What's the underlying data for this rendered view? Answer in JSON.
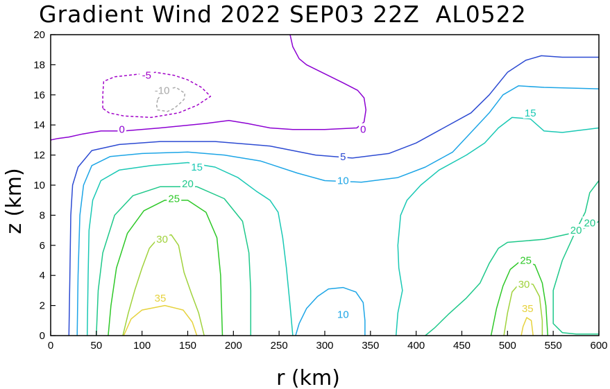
{
  "chart_data": {
    "type": "contour",
    "title": "Gradient Wind 2022 SEP03 22Z  AL0522",
    "xlabel": "r (km)",
    "ylabel": "z (km)",
    "xlim": [
      0,
      600
    ],
    "ylim": [
      0,
      20
    ],
    "x_ticks": [
      0,
      50,
      100,
      150,
      200,
      250,
      300,
      350,
      400,
      450,
      500,
      550,
      600
    ],
    "y_ticks": [
      0,
      2,
      4,
      6,
      8,
      10,
      12,
      14,
      16,
      18,
      20
    ],
    "x_tick_labels": [
      "0",
      "50",
      "100",
      "150",
      "200",
      "250",
      "300",
      "350",
      "400",
      "450",
      "500",
      "550",
      "600"
    ],
    "y_tick_labels": [
      "0",
      "2",
      "4",
      "6",
      "8",
      "10",
      "12",
      "14",
      "16",
      "18",
      "20"
    ],
    "colors": {
      "-10": "#a8a8a8",
      "-5": "#a000c8",
      "0": "#8c00d2",
      "5": "#2c4ad2",
      "10": "#1ca5e6",
      "15": "#19c8b4",
      "20": "#1ec88a",
      "25": "#2ec828",
      "30": "#a0d23c",
      "35": "#e6d23c"
    },
    "contours": [
      {
        "level": -10,
        "dashed": true,
        "label": "-10",
        "label_at": [
          122,
          16.3
        ],
        "points": [
          [
            117,
            15.7
          ],
          [
            122,
            16.1
          ],
          [
            130,
            16.4
          ],
          [
            137,
            16.5
          ],
          [
            142,
            16.3
          ],
          [
            147,
            16.1
          ],
          [
            146,
            15.7
          ],
          [
            141,
            15.4
          ],
          [
            135,
            15.1
          ],
          [
            128,
            14.9
          ],
          [
            117,
            15.0
          ],
          [
            116,
            15.3
          ],
          [
            117,
            15.7
          ]
        ]
      },
      {
        "level": -5,
        "dashed": true,
        "label": "-5",
        "label_at": [
          105,
          17.3
        ],
        "points": [
          [
            57,
            15.1
          ],
          [
            57,
            16.0
          ],
          [
            58,
            16.9
          ],
          [
            70,
            17.2
          ],
          [
            85,
            17.3
          ],
          [
            100,
            17.4
          ],
          [
            115,
            17.5
          ],
          [
            135,
            17.3
          ],
          [
            150,
            17.0
          ],
          [
            165,
            16.5
          ],
          [
            175,
            15.9
          ],
          [
            160,
            15.3
          ],
          [
            140,
            14.8
          ],
          [
            110,
            14.5
          ],
          [
            80,
            14.6
          ],
          [
            64,
            14.8
          ],
          [
            57,
            15.1
          ]
        ]
      },
      {
        "level": 0,
        "label": "0",
        "label_at": [
          78,
          13.7
        ],
        "points": [
          [
            0,
            13.0
          ],
          [
            8,
            13.1
          ],
          [
            20,
            13.2
          ],
          [
            35,
            13.4
          ],
          [
            55,
            13.6
          ],
          [
            80,
            13.6
          ],
          [
            120,
            13.8
          ],
          [
            170,
            14.1
          ],
          [
            195,
            14.3
          ],
          [
            215,
            14.1
          ],
          [
            240,
            13.8
          ],
          [
            265,
            13.7
          ],
          [
            300,
            13.7
          ],
          [
            335,
            13.8
          ],
          [
            343,
            14.2
          ],
          [
            345,
            15.0
          ],
          [
            343,
            15.8
          ],
          [
            336,
            16.3
          ],
          [
            320,
            16.8
          ],
          [
            300,
            17.4
          ],
          [
            280,
            18.0
          ],
          [
            272,
            18.4
          ],
          [
            265,
            19.2
          ],
          [
            262,
            20.0
          ]
        ]
      },
      {
        "level": 0,
        "label": "0",
        "label_at": [
          342,
          13.7
        ],
        "points": []
      },
      {
        "level": 5,
        "label": "5",
        "label_at": [
          320,
          11.9
        ],
        "points": [
          [
            20,
            0.0
          ],
          [
            21,
            4.0
          ],
          [
            22,
            8.0
          ],
          [
            24,
            10.0
          ],
          [
            30,
            11.2
          ],
          [
            45,
            12.3
          ],
          [
            75,
            12.7
          ],
          [
            120,
            12.9
          ],
          [
            180,
            12.9
          ],
          [
            240,
            12.6
          ],
          [
            290,
            12.0
          ],
          [
            330,
            11.8
          ],
          [
            370,
            12.1
          ],
          [
            400,
            12.8
          ],
          [
            430,
            13.8
          ],
          [
            460,
            14.8
          ],
          [
            480,
            16.0
          ],
          [
            500,
            17.5
          ],
          [
            520,
            18.3
          ],
          [
            537,
            18.6
          ],
          [
            560,
            18.5
          ],
          [
            600,
            18.5
          ]
        ]
      },
      {
        "level": 10,
        "label": "10",
        "label_at": [
          320,
          10.3
        ],
        "points": [
          [
            29,
            0.0
          ],
          [
            30,
            4.0
          ],
          [
            32,
            8.0
          ],
          [
            36,
            10.0
          ],
          [
            45,
            11.3
          ],
          [
            65,
            11.9
          ],
          [
            100,
            12.1
          ],
          [
            150,
            12.2
          ],
          [
            190,
            12.0
          ],
          [
            230,
            11.6
          ],
          [
            270,
            10.8
          ],
          [
            300,
            10.3
          ],
          [
            340,
            10.2
          ],
          [
            380,
            10.5
          ],
          [
            410,
            11.2
          ],
          [
            440,
            12.2
          ],
          [
            460,
            13.5
          ],
          [
            480,
            14.8
          ],
          [
            495,
            16.0
          ],
          [
            512,
            16.6
          ],
          [
            540,
            16.5
          ],
          [
            600,
            16.4
          ]
        ]
      },
      {
        "level": 10,
        "label": "10",
        "label_at": [
          320,
          1.4
        ],
        "points": [
          [
            268,
            0.0
          ],
          [
            272,
            0.8
          ],
          [
            280,
            1.8
          ],
          [
            292,
            2.6
          ],
          [
            304,
            3.1
          ],
          [
            320,
            3.2
          ],
          [
            334,
            2.9
          ],
          [
            342,
            2.2
          ],
          [
            344,
            1.0
          ],
          [
            344,
            0.0
          ]
        ]
      },
      {
        "level": 15,
        "label": "15",
        "label_at": [
          160,
          11.2
        ],
        "points": [
          [
            40,
            0.0
          ],
          [
            41,
            4.0
          ],
          [
            42,
            7.0
          ],
          [
            46,
            9.0
          ],
          [
            55,
            10.3
          ],
          [
            75,
            11.0
          ],
          [
            110,
            11.3
          ],
          [
            150,
            11.5
          ],
          [
            180,
            11.2
          ],
          [
            205,
            10.5
          ],
          [
            225,
            9.6
          ],
          [
            240,
            9.0
          ],
          [
            249,
            8.2
          ],
          [
            254,
            6.5
          ],
          [
            258,
            4.5
          ],
          [
            262,
            2.0
          ],
          [
            265,
            0.0
          ]
        ]
      },
      {
        "level": 15,
        "label": "15",
        "label_at": [
          525,
          14.8
        ],
        "points": [
          [
            378,
            0.0
          ],
          [
            380,
            1.5
          ],
          [
            385,
            3.0
          ],
          [
            381,
            4.5
          ],
          [
            380,
            6.0
          ],
          [
            383,
            8.0
          ],
          [
            390,
            9.0
          ],
          [
            405,
            10.0
          ],
          [
            425,
            11.0
          ],
          [
            455,
            12.0
          ],
          [
            475,
            12.8
          ],
          [
            490,
            13.8
          ],
          [
            505,
            14.5
          ],
          [
            525,
            14.4
          ],
          [
            540,
            13.6
          ],
          [
            560,
            13.5
          ],
          [
            600,
            13.8
          ]
        ]
      },
      {
        "level": 20,
        "label": "20",
        "label_at": [
          150,
          10.1
        ],
        "points": [
          [
            50,
            0.0
          ],
          [
            52,
            3.0
          ],
          [
            57,
            5.5
          ],
          [
            70,
            8.0
          ],
          [
            90,
            9.3
          ],
          [
            120,
            9.9
          ],
          [
            160,
            9.9
          ],
          [
            190,
            9.1
          ],
          [
            210,
            7.6
          ],
          [
            217,
            5.5
          ],
          [
            219,
            3.0
          ],
          [
            219,
            0.0
          ]
        ]
      },
      {
        "level": 20,
        "label": "20",
        "label_at": [
          575,
          7.0
        ],
        "points": [
          [
            410,
            0.0
          ],
          [
            420,
            0.5
          ],
          [
            435,
            1.4
          ],
          [
            455,
            2.5
          ],
          [
            470,
            3.5
          ],
          [
            480,
            4.8
          ],
          [
            490,
            5.8
          ],
          [
            500,
            6.2
          ],
          [
            540,
            6.4
          ],
          [
            570,
            6.8
          ],
          [
            595,
            7.4
          ],
          [
            600,
            7.6
          ]
        ]
      },
      {
        "level": 20,
        "label": "20",
        "label_at": [
          590,
          7.5
        ],
        "points": [
          [
            600,
            10.3
          ],
          [
            590,
            9.5
          ],
          [
            585,
            8.2
          ],
          [
            575,
            7.0
          ],
          [
            560,
            5.0
          ],
          [
            550,
            3.0
          ],
          [
            550,
            0.8
          ],
          [
            560,
            0.2
          ],
          [
            575,
            0.1
          ],
          [
            600,
            0.1
          ]
        ]
      },
      {
        "level": 25,
        "label": "25",
        "label_at": [
          135,
          9.1
        ],
        "points": [
          [
            63,
            0.0
          ],
          [
            66,
            2.0
          ],
          [
            72,
            4.5
          ],
          [
            84,
            6.8
          ],
          [
            102,
            8.3
          ],
          [
            125,
            9.0
          ],
          [
            150,
            9.0
          ],
          [
            170,
            8.2
          ],
          [
            182,
            6.5
          ],
          [
            186,
            4.0
          ],
          [
            188,
            0.0
          ]
        ]
      },
      {
        "level": 25,
        "label": "25",
        "label_at": [
          520,
          5.0
        ],
        "points": [
          [
            482,
            0.0
          ],
          [
            488,
            1.8
          ],
          [
            495,
            3.3
          ],
          [
            503,
            4.4
          ],
          [
            515,
            5.0
          ],
          [
            530,
            4.7
          ],
          [
            538,
            3.5
          ],
          [
            542,
            2.0
          ],
          [
            544,
            0.0
          ]
        ]
      },
      {
        "level": 30,
        "label": "30",
        "label_at": [
          122,
          6.4
        ],
        "points": [
          [
            79,
            0.0
          ],
          [
            85,
            1.5
          ],
          [
            92,
            3.0
          ],
          [
            100,
            4.5
          ],
          [
            108,
            5.8
          ],
          [
            118,
            6.5
          ],
          [
            132,
            6.7
          ],
          [
            140,
            6.0
          ],
          [
            146,
            4.2
          ],
          [
            154,
            2.8
          ],
          [
            162,
            1.5
          ],
          [
            168,
            0.0
          ]
        ]
      },
      {
        "level": 30,
        "label": "30",
        "label_at": [
          518,
          3.4
        ],
        "points": [
          [
            496,
            0.0
          ],
          [
            500,
            1.5
          ],
          [
            505,
            2.9
          ],
          [
            515,
            3.6
          ],
          [
            528,
            3.4
          ],
          [
            535,
            2.6
          ],
          [
            538,
            1.0
          ],
          [
            538,
            0.0
          ]
        ]
      },
      {
        "level": 35,
        "label": "35",
        "label_at": [
          120,
          2.5
        ],
        "points": [
          [
            80,
            0.0
          ],
          [
            88,
            1.1
          ],
          [
            100,
            1.7
          ],
          [
            125,
            2.0
          ],
          [
            145,
            1.7
          ],
          [
            155,
            0.9
          ],
          [
            160,
            0.0
          ]
        ]
      },
      {
        "level": 35,
        "label": "35",
        "label_at": [
          522,
          1.8
        ],
        "points": [
          [
            515,
            0.0
          ],
          [
            517,
            0.6
          ],
          [
            521,
            1.2
          ],
          [
            526,
            1.0
          ],
          [
            528,
            0.0
          ]
        ]
      }
    ]
  }
}
